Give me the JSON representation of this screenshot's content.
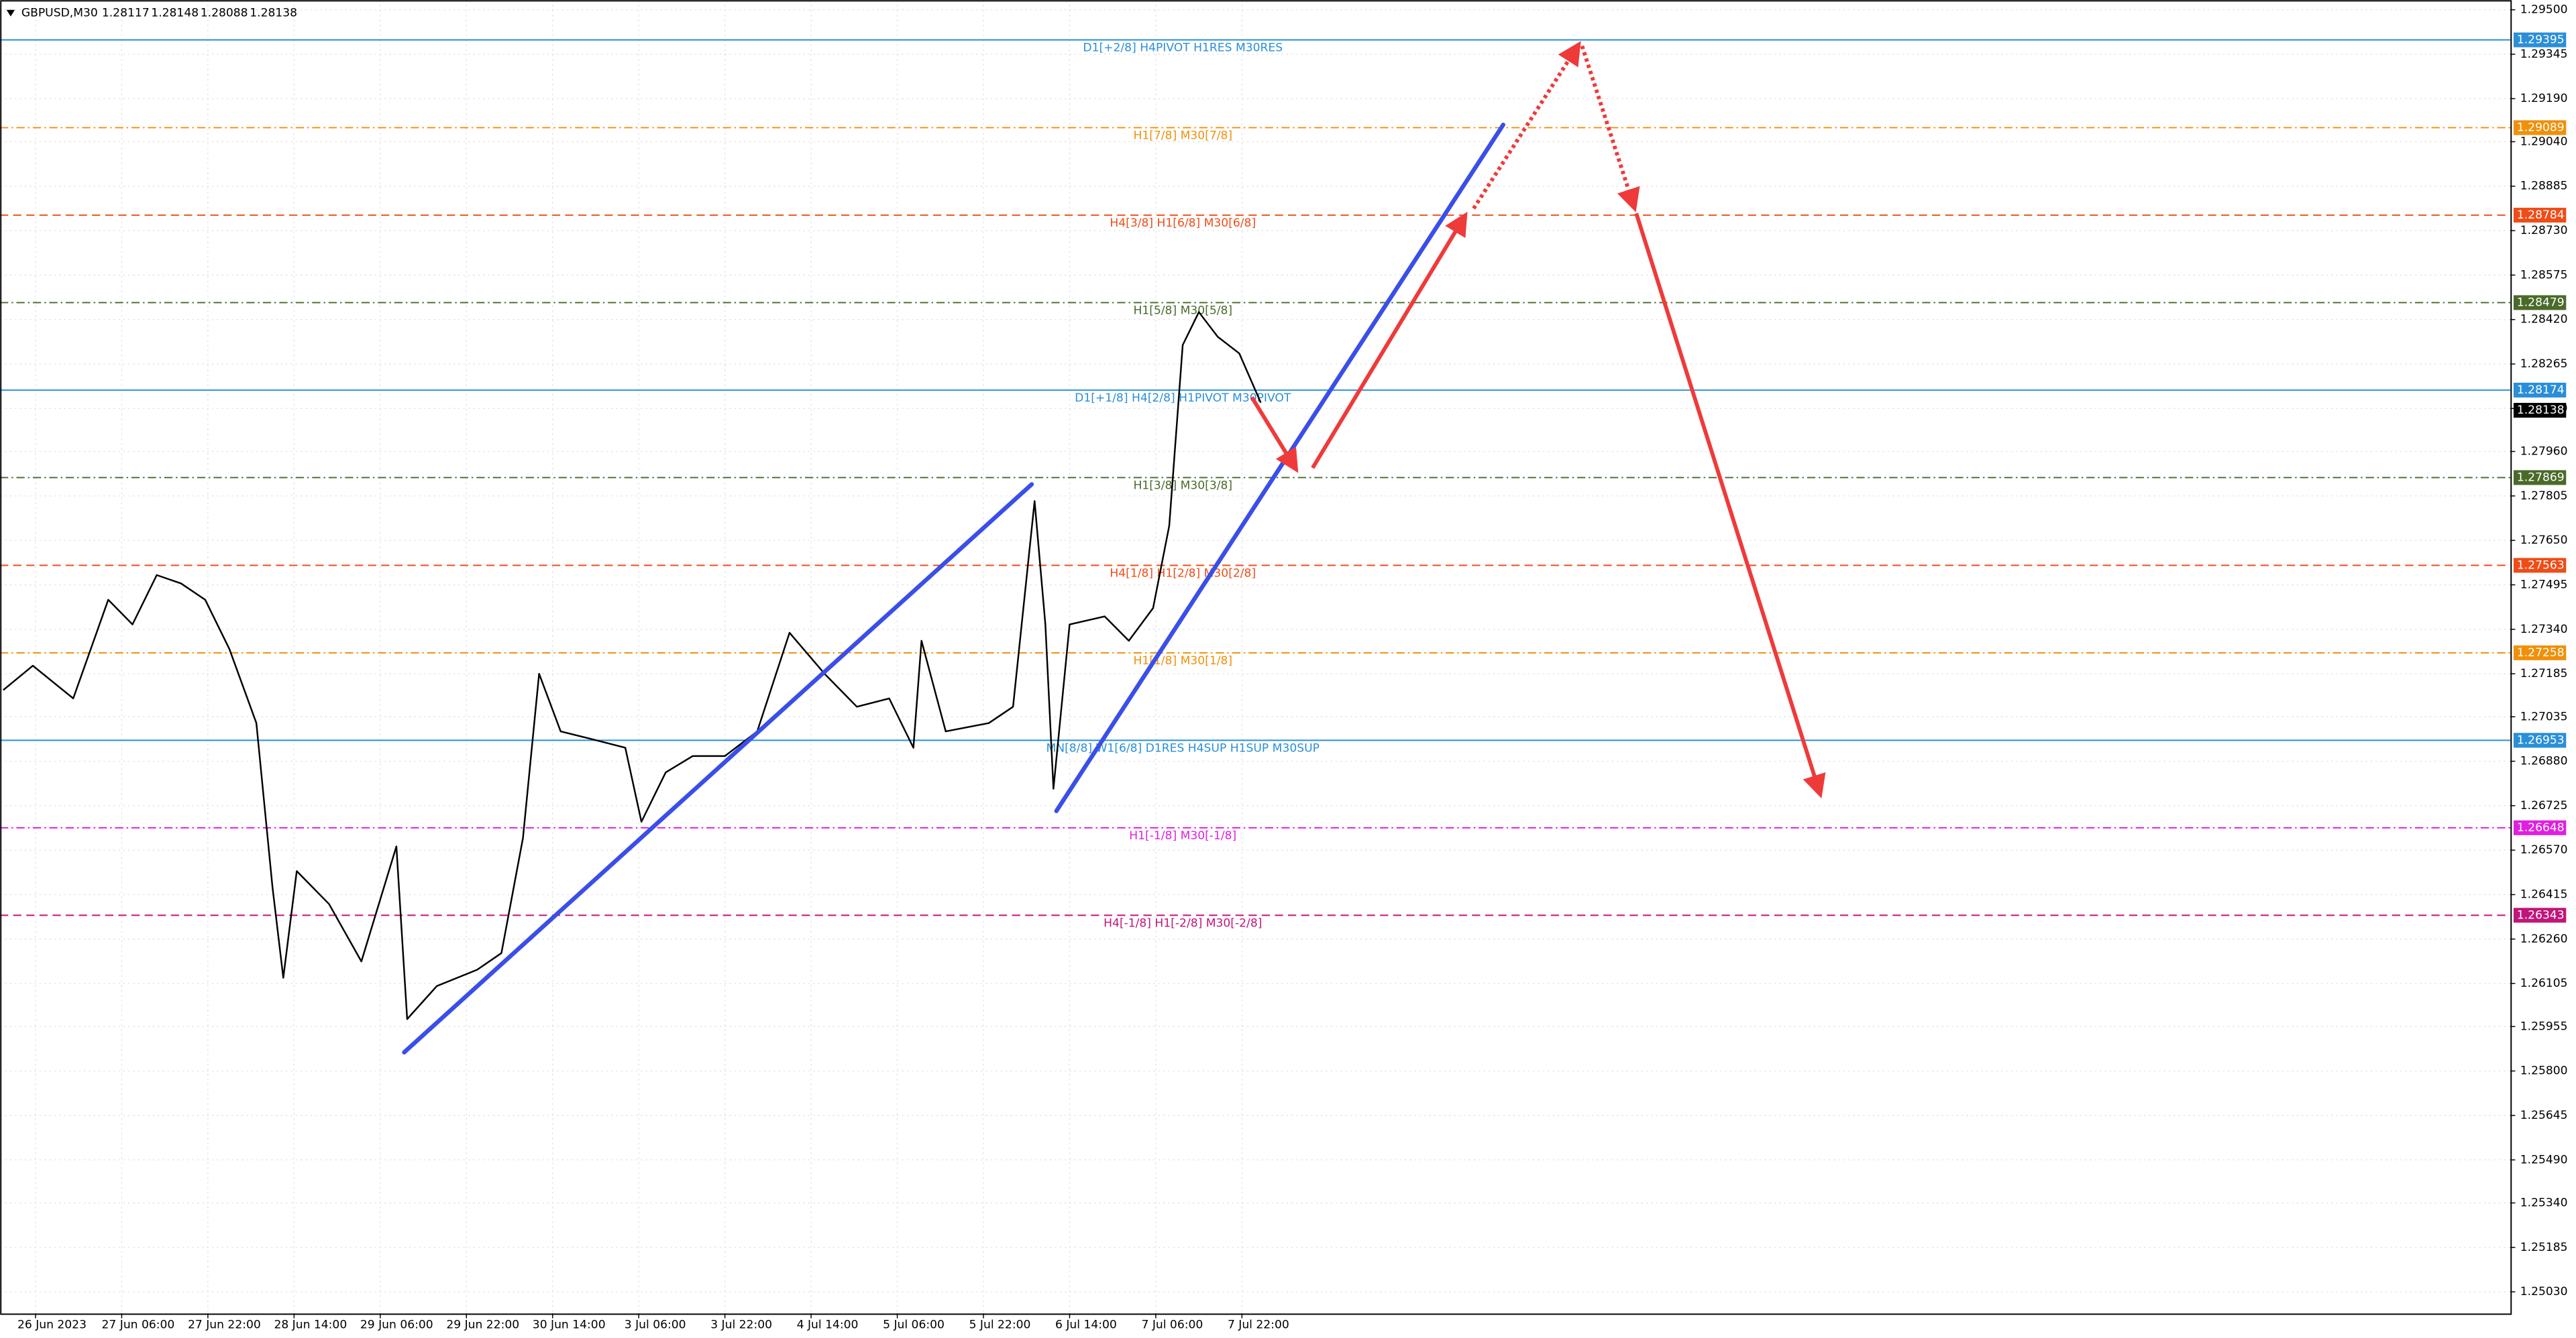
{
  "chart_data": {
    "type": "line",
    "symbol": "GBPUSD,M30",
    "ohlc": [
      1.28117,
      1.28148,
      1.28088,
      1.28138
    ],
    "x": [
      0,
      11,
      26,
      39,
      48,
      57,
      66,
      75,
      84,
      94,
      100,
      104,
      109,
      121,
      133,
      146,
      150,
      161,
      176,
      185,
      193,
      199,
      207,
      219,
      231,
      237,
      246,
      256,
      268,
      280,
      292,
      305,
      317,
      329,
      338,
      341,
      350,
      366,
      375,
      383,
      387,
      390,
      396,
      409,
      418,
      427,
      433,
      438,
      444,
      451,
      459,
      467
    ],
    "series": [
      {
        "color": "#000000",
        "values": [
          1.27128,
          1.27213,
          1.27099,
          1.27443,
          1.27357,
          1.27529,
          1.275,
          1.27443,
          1.27271,
          1.27013,
          1.2644,
          1.26125,
          1.26497,
          1.26382,
          1.26182,
          1.26583,
          1.25981,
          1.26096,
          1.26153,
          1.26211,
          1.26612,
          1.27185,
          1.26984,
          1.26956,
          1.26927,
          1.26669,
          1.26841,
          1.26898,
          1.26898,
          1.26984,
          1.27328,
          1.27185,
          1.2707,
          1.27099,
          1.26927,
          1.273,
          1.26984,
          1.27013,
          1.2707,
          1.27787,
          1.27357,
          1.26784,
          1.27357,
          1.27385,
          1.273,
          1.27414,
          1.27701,
          1.28331,
          1.28446,
          1.2836,
          1.28302,
          1.2813
        ]
      }
    ],
    "xlim": [
      -1.2,
      931
    ],
    "xticks": [
      {
        "value": 12,
        "label": "26 Jun 2023"
      },
      {
        "value": 44,
        "label": "27 Jun 06:00"
      },
      {
        "value": 76,
        "label": "27 Jun 22:00"
      },
      {
        "value": 108,
        "label": "28 Jun 14:00"
      },
      {
        "value": 140,
        "label": "29 Jun 06:00"
      },
      {
        "value": 172,
        "label": "29 Jun 22:00"
      },
      {
        "value": 204,
        "label": "30 Jun 14:00"
      },
      {
        "value": 236,
        "label": "3 Jul 06:00"
      },
      {
        "value": 268,
        "label": "3 Jul 22:00"
      },
      {
        "value": 300,
        "label": "4 Jul 14:00"
      },
      {
        "value": 332,
        "label": "5 Jul 06:00"
      },
      {
        "value": 364,
        "label": "5 Jul 22:00"
      },
      {
        "value": 396,
        "label": "6 Jul 14:00"
      },
      {
        "value": 428,
        "label": "7 Jul 06:00"
      },
      {
        "value": 460,
        "label": "7 Jul 22:00"
      }
    ],
    "ylim": [
      1.24955,
      1.29534
    ],
    "yticks": [
      {
        "value": 1.295,
        "label": "1.29500"
      },
      {
        "value": 1.29345,
        "label": "1.29345"
      },
      {
        "value": 1.2919,
        "label": "1.29190"
      },
      {
        "value": 1.2904,
        "label": "1.29040"
      },
      {
        "value": 1.28885,
        "label": "1.28885"
      },
      {
        "value": 1.2873,
        "label": "1.28730"
      },
      {
        "value": 1.28575,
        "label": "1.28575"
      },
      {
        "value": 1.2842,
        "label": "1.28420"
      },
      {
        "value": 1.28265,
        "label": "1.28265"
      },
      {
        "value": 1.2811,
        "label": "1.28110"
      },
      {
        "value": 1.2796,
        "label": "1.27960"
      },
      {
        "value": 1.27805,
        "label": "1.27805"
      },
      {
        "value": 1.2765,
        "label": "1.27650"
      },
      {
        "value": 1.27495,
        "label": "1.27495"
      },
      {
        "value": 1.2734,
        "label": "1.27340"
      },
      {
        "value": 1.27185,
        "label": "1.27185"
      },
      {
        "value": 1.27035,
        "label": "1.27035"
      },
      {
        "value": 1.2688,
        "label": "1.26880"
      },
      {
        "value": 1.26725,
        "label": "1.26725"
      },
      {
        "value": 1.2657,
        "label": "1.26570"
      },
      {
        "value": 1.26415,
        "label": "1.26415"
      },
      {
        "value": 1.2626,
        "label": "1.26260"
      },
      {
        "value": 1.26105,
        "label": "1.26105"
      },
      {
        "value": 1.25955,
        "label": "1.25955"
      },
      {
        "value": 1.258,
        "label": "1.25800"
      },
      {
        "value": 1.25645,
        "label": "1.25645"
      },
      {
        "value": 1.2549,
        "label": "1.25490"
      },
      {
        "value": 1.2534,
        "label": "1.25340"
      },
      {
        "value": 1.25185,
        "label": "1.25185"
      },
      {
        "value": 1.2503,
        "label": "1.25030"
      }
    ],
    "grid": true,
    "levels": [
      {
        "name": "D1[+2/8] H4PIVOT H1RES M30RES",
        "value": 1.29395,
        "color": "#2a8fd8",
        "style": "solid"
      },
      {
        "name": "H1[7/8] M30[7/8]",
        "value": 1.29089,
        "color": "#f0900a",
        "style": "dashdot"
      },
      {
        "name": "H4[3/8] H1[6/8] M30[6/8]",
        "value": 1.28784,
        "color": "#f04c18",
        "style": "dash"
      },
      {
        "name": "H1[5/8] M30[5/8]",
        "value": 1.28479,
        "color": "#4a6a2a",
        "style": "dashdot"
      },
      {
        "name": "D1[+1/8] H4[2/8] H1PIVOT M30PIVOT",
        "value": 1.28174,
        "color": "#2a8fd8",
        "style": "solid"
      },
      {
        "name": "H1[3/8] M30[3/8]",
        "value": 1.27869,
        "color": "#4a6a2a",
        "style": "dashdot"
      },
      {
        "name": "H4[1/8] H1[2/8] M30[2/8]",
        "value": 1.27563,
        "color": "#f04c18",
        "style": "dash"
      },
      {
        "name": "H1[1/8] M30[1/8]",
        "value": 1.27258,
        "color": "#f0900a",
        "style": "dashdot"
      },
      {
        "name": "MN[8/8] W1[6/8] D1RES H4SUP H1SUP M30SUP",
        "value": 1.26953,
        "color": "#2a8fd8",
        "style": "solid"
      },
      {
        "name": "H1[-1/8] M30[-1/8]",
        "value": 1.26648,
        "color": "#e020e0",
        "style": "dashdot"
      },
      {
        "name": "H4[-1/8] H1[-2/8] M30[-2/8]",
        "value": 1.26343,
        "color": "#c0157a",
        "style": "dash"
      }
    ],
    "current_price": 1.28138
  }
}
